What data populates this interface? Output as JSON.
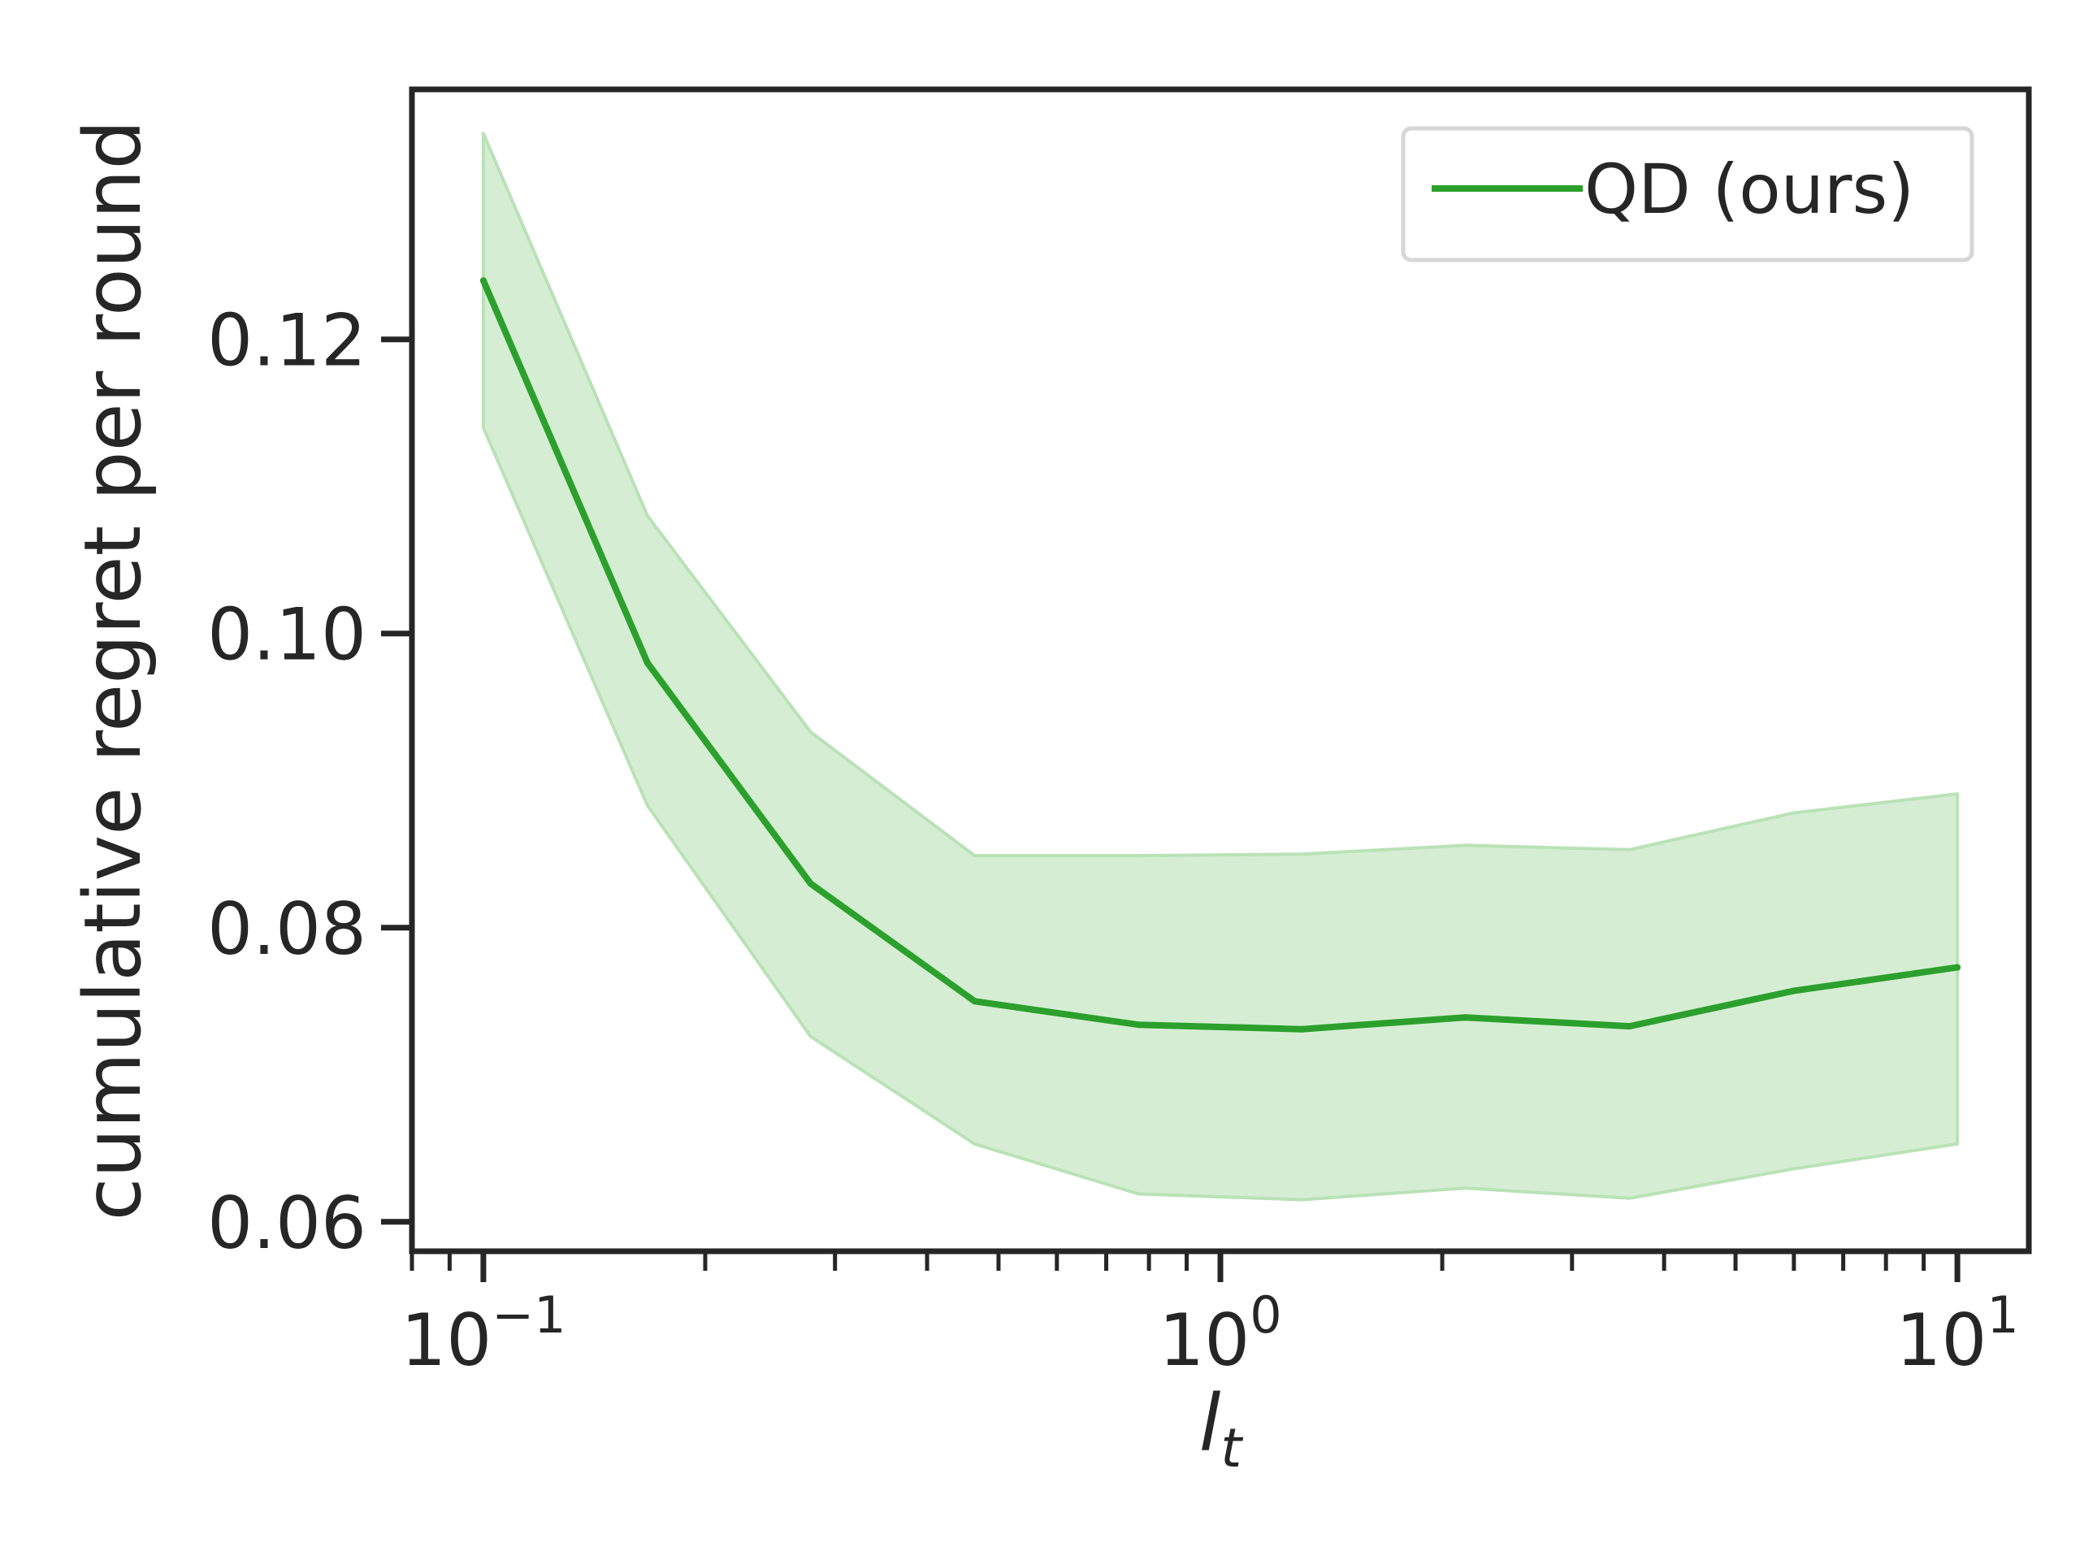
{
  "chart_data": {
    "type": "line",
    "xscale": "log",
    "xlim": [
      0.08,
      12.5
    ],
    "ylim": [
      0.058,
      0.137
    ],
    "xlabel_base": "l",
    "xlabel_sub": "t",
    "ylabel": "cumulative regret per round",
    "x_major_ticks": [
      {
        "value": 0.1,
        "base": "10",
        "exp": "−1"
      },
      {
        "value": 1,
        "base": "10",
        "exp": "0"
      },
      {
        "value": 10,
        "base": "10",
        "exp": "1"
      }
    ],
    "y_ticks": [
      0.06,
      0.08,
      0.1,
      0.12
    ],
    "y_tick_labels": [
      "0.06",
      "0.08",
      "0.10",
      "0.12"
    ],
    "legend_position": "top-right",
    "series": [
      {
        "name": "QD (ours)",
        "color": "#2ca02c",
        "band_color": "#b9e2b6",
        "x": [
          0.1,
          0.167,
          0.278,
          0.464,
          0.774,
          1.29,
          2.15,
          3.59,
          5.99,
          10
        ],
        "y": [
          0.124,
          0.098,
          0.083,
          0.075,
          0.0734,
          0.0731,
          0.0739,
          0.0733,
          0.0757,
          0.0773
        ],
        "lower": [
          0.114,
          0.0883,
          0.0726,
          0.0653,
          0.0619,
          0.0615,
          0.0623,
          0.0616,
          0.0636,
          0.0653
        ],
        "upper": [
          0.134,
          0.108,
          0.0933,
          0.0849,
          0.0849,
          0.085,
          0.0856,
          0.0853,
          0.0878,
          0.0891
        ]
      }
    ]
  }
}
